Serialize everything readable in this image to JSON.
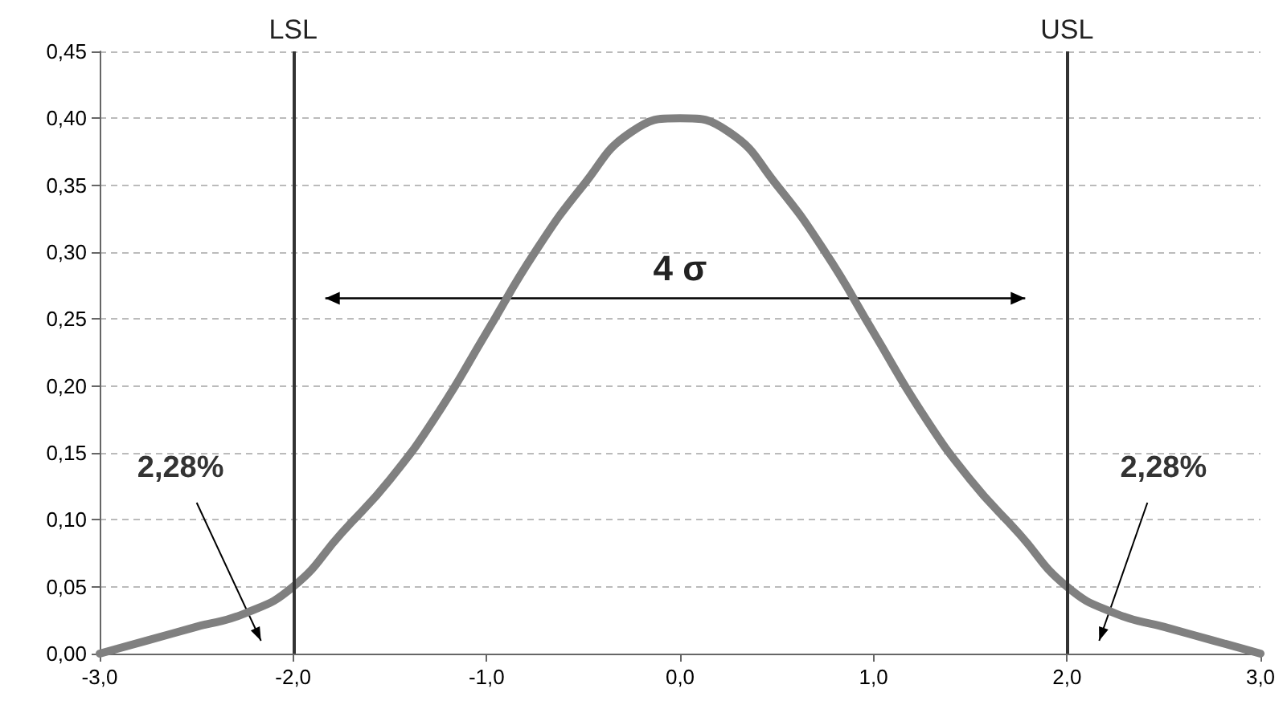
{
  "chart_data": {
    "type": "line",
    "x": [
      -3,
      -2.75,
      -2.5,
      -2.25,
      -2,
      -1.75,
      -1.5,
      -1.25,
      -1,
      -0.75,
      -0.5,
      -0.25,
      0,
      0.25,
      0.5,
      0.75,
      1,
      1.25,
      1.5,
      1.75,
      2,
      2.25,
      2.5,
      2.75,
      3
    ],
    "series": [
      {
        "color": "#808080",
        "values": [
          0.0,
          0.01,
          0.02,
          0.03,
          0.05,
          0.09,
          0.13,
          0.18,
          0.24,
          0.3,
          0.35,
          0.39,
          0.4,
          0.39,
          0.35,
          0.3,
          0.24,
          0.18,
          0.13,
          0.09,
          0.05,
          0.03,
          0.02,
          0.01,
          0.0
        ]
      }
    ],
    "xlim": [
      -3,
      3
    ],
    "xticks": [
      {
        "value": -3,
        "label": "-3,0"
      },
      {
        "value": -2,
        "label": "-2,0"
      },
      {
        "value": -1,
        "label": "-1,0"
      },
      {
        "value": 0,
        "label": "0,0"
      },
      {
        "value": 1,
        "label": "1,0"
      },
      {
        "value": 2,
        "label": "2,0"
      },
      {
        "value": 3,
        "label": "3,0"
      }
    ],
    "ylim": [
      0,
      0.45
    ],
    "yticks": [
      {
        "value": 0,
        "label": "0,00"
      },
      {
        "value": 0.05,
        "label": "0,05"
      },
      {
        "value": 0.1,
        "label": "0,10"
      },
      {
        "value": 0.15,
        "label": "0,15"
      },
      {
        "value": 0.2,
        "label": "0,20"
      },
      {
        "value": 0.25,
        "label": "0,25"
      },
      {
        "value": 0.3,
        "label": "0,30"
      },
      {
        "value": 0.35,
        "label": "0,35"
      },
      {
        "value": 0.4,
        "label": "0,40"
      },
      {
        "value": 0.45,
        "label": "0,45"
      }
    ],
    "grid": "y",
    "marker": "none",
    "line_style": "solid",
    "ref_lines": [
      {
        "axis": "x",
        "value": -2,
        "label": "LSL",
        "color": "#333333"
      },
      {
        "axis": "x",
        "value": 2,
        "label": "USL",
        "color": "#333333"
      }
    ],
    "annotations": [
      "4 σ",
      "2,28%",
      "2,28%"
    ]
  }
}
